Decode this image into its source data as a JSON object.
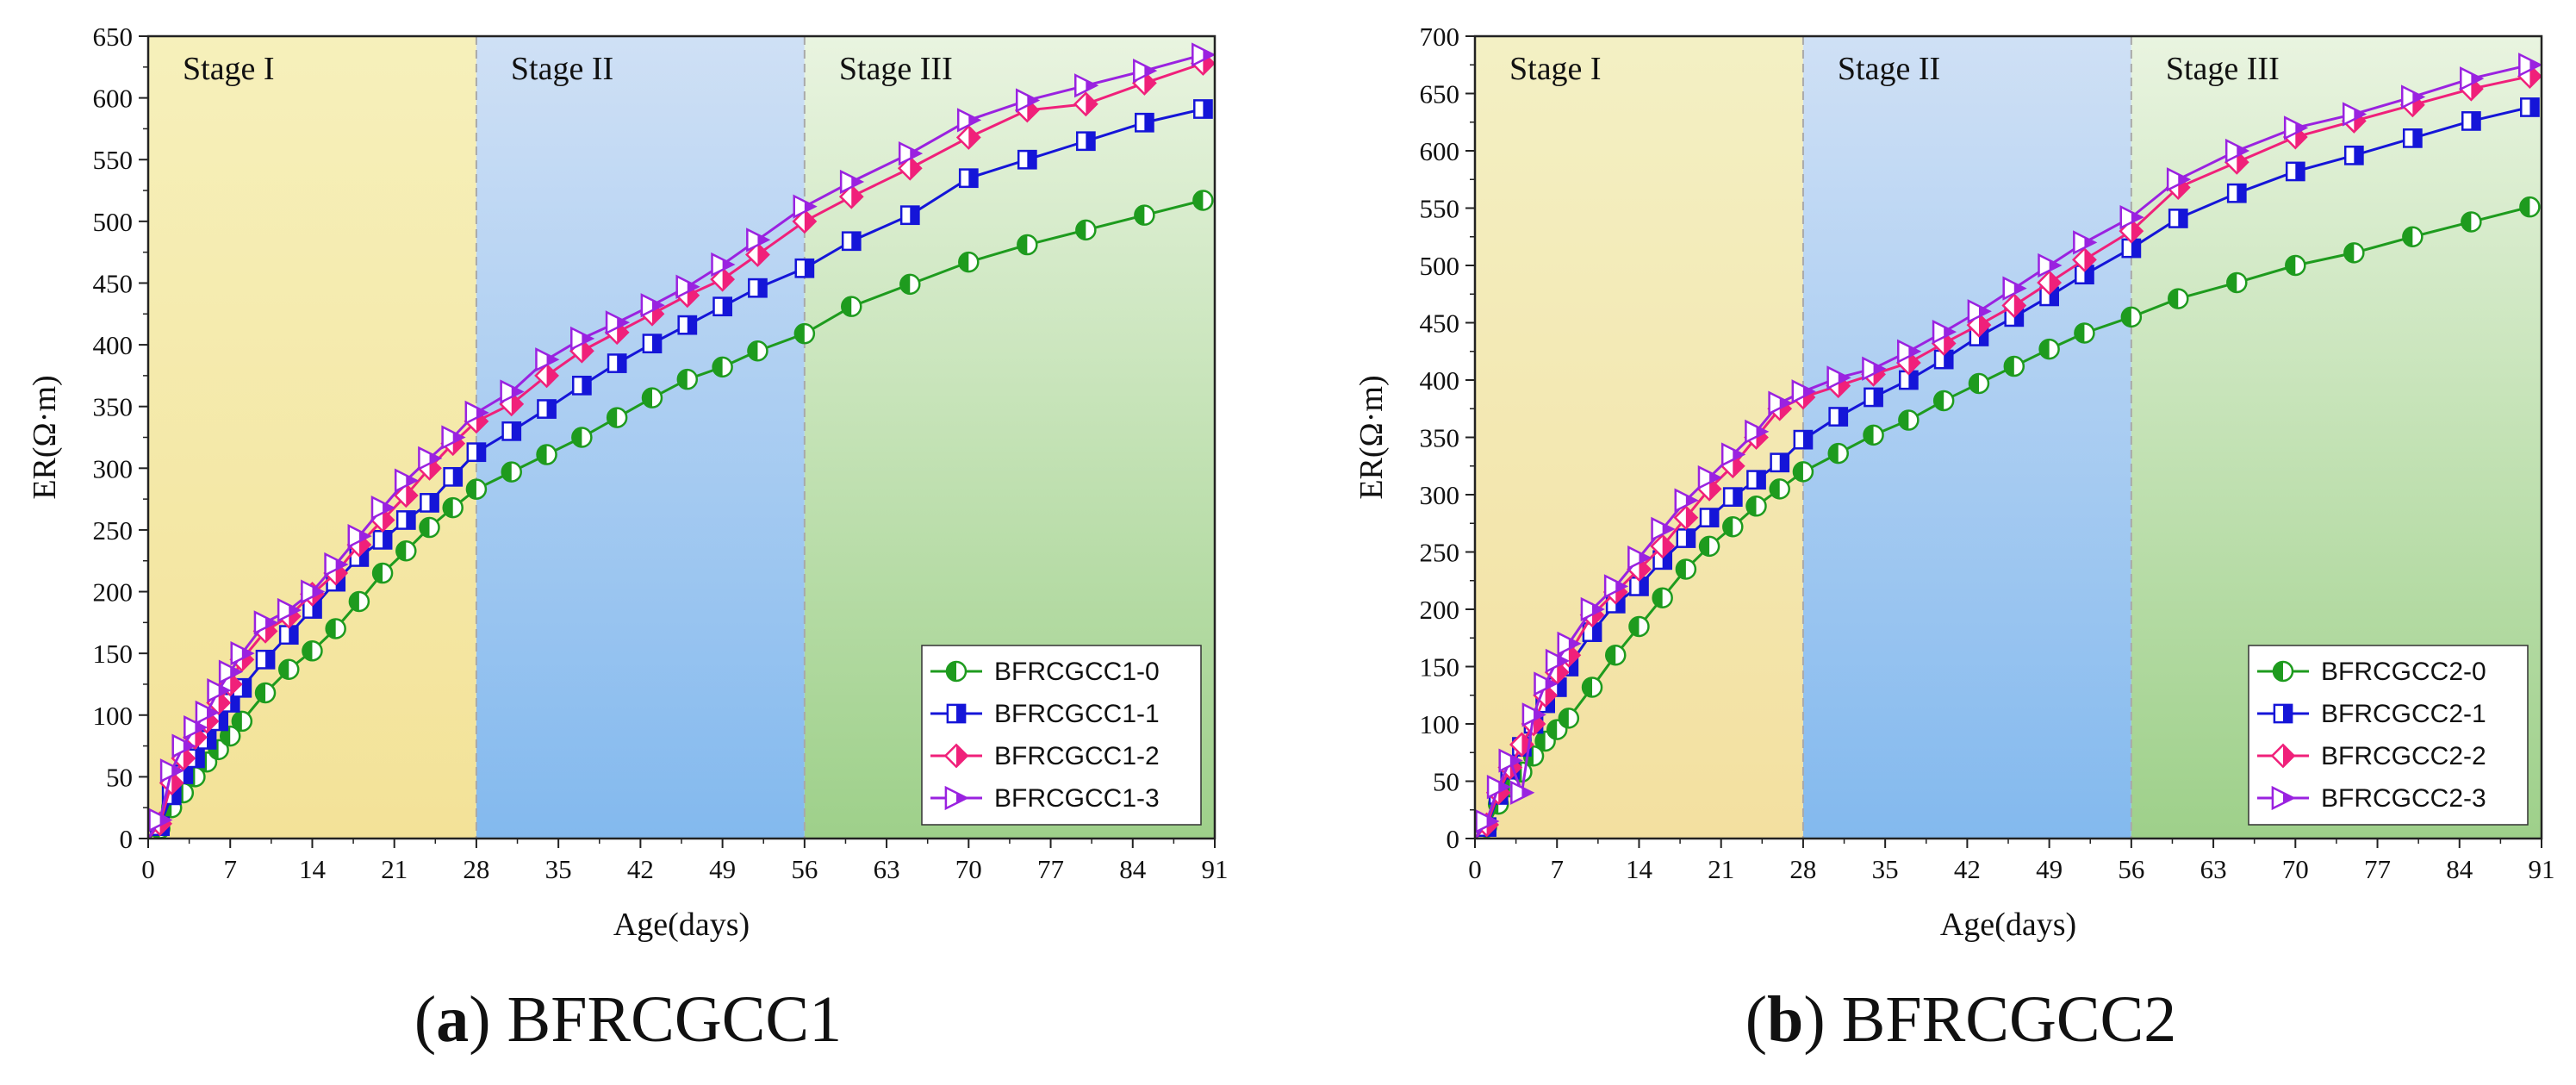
{
  "chart_data": [
    {
      "type": "line",
      "caption": {
        "letter": "a",
        "name": "BFRCGCC1"
      },
      "xlabel": "Age(days)",
      "ylabel": "ER(Ω·m)",
      "xlim": [
        0,
        91
      ],
      "ylim": [
        0,
        650
      ],
      "xticks": [
        0,
        7,
        14,
        21,
        28,
        35,
        42,
        49,
        56,
        63,
        70,
        77,
        84,
        91
      ],
      "yticks": [
        0,
        50,
        100,
        150,
        200,
        250,
        300,
        350,
        400,
        450,
        500,
        550,
        600,
        650
      ],
      "stages": [
        {
          "label": "Stage I",
          "start": 0,
          "end": 28,
          "top": "#f6f0bb",
          "bottom": "#f3e298"
        },
        {
          "label": "Stage II",
          "start": 28,
          "end": 56,
          "top": "#cfe0f5",
          "bottom": "#83b9ee"
        },
        {
          "label": "Stage III",
          "start": 56,
          "end": 91,
          "top": "#e9f4e0",
          "bottom": "#9ed08a"
        }
      ],
      "x": [
        1,
        2,
        3,
        4,
        5,
        6,
        7,
        8,
        10,
        12,
        14,
        16,
        18,
        20,
        22,
        24,
        26,
        28,
        31,
        34,
        37,
        40,
        43,
        46,
        49,
        52,
        56,
        60,
        65,
        70,
        75,
        80,
        85,
        90
      ],
      "series": [
        {
          "name": "BFRCGCC1-0",
          "color": "#1e9b1e",
          "marker": "circle",
          "values": [
            8,
            25,
            37,
            50,
            62,
            72,
            83,
            95,
            118,
            137,
            152,
            170,
            192,
            215,
            233,
            252,
            268,
            283,
            297,
            311,
            325,
            341,
            357,
            372,
            382,
            395,
            409,
            431,
            449,
            467,
            481,
            493,
            505,
            517
          ]
        },
        {
          "name": "BFRCGCC1-1",
          "color": "#1515d8",
          "marker": "square",
          "values": [
            10,
            35,
            52,
            65,
            80,
            95,
            110,
            122,
            145,
            165,
            186,
            208,
            228,
            242,
            258,
            272,
            293,
            313,
            330,
            348,
            367,
            385,
            401,
            416,
            431,
            446,
            462,
            484,
            505,
            535,
            550,
            565,
            580,
            591
          ]
        },
        {
          "name": "BFRCGCC1-2",
          "color": "#f0207a",
          "marker": "diamond",
          "values": [
            12,
            45,
            65,
            82,
            95,
            110,
            125,
            145,
            168,
            180,
            198,
            215,
            238,
            258,
            278,
            300,
            320,
            338,
            352,
            375,
            395,
            410,
            425,
            440,
            453,
            473,
            500,
            520,
            543,
            568,
            590,
            595,
            612,
            628
          ]
        },
        {
          "name": "BFRCGCC1-3",
          "color": "#9a22e0",
          "marker": "triangle-right",
          "values": [
            15,
            55,
            75,
            90,
            102,
            120,
            135,
            150,
            175,
            185,
            200,
            222,
            245,
            268,
            290,
            308,
            325,
            345,
            362,
            388,
            405,
            418,
            432,
            447,
            465,
            485,
            512,
            532,
            555,
            582,
            598,
            610,
            622,
            635
          ]
        }
      ],
      "legend": "bottom-right"
    },
    {
      "type": "line",
      "caption": {
        "letter": "b",
        "name": "BFRCGCC2"
      },
      "xlabel": "Age(days)",
      "ylabel": "ER(Ω·m)",
      "xlim": [
        0,
        91
      ],
      "ylim": [
        0,
        700
      ],
      "xticks": [
        0,
        7,
        14,
        21,
        28,
        35,
        42,
        49,
        56,
        63,
        70,
        77,
        84,
        91
      ],
      "yticks": [
        0,
        50,
        100,
        150,
        200,
        250,
        300,
        350,
        400,
        450,
        500,
        550,
        600,
        650,
        700
      ],
      "stages": [
        {
          "label": "Stage I",
          "start": 0,
          "end": 28,
          "top": "#f3f0c4",
          "bottom": "#f3e0a0"
        },
        {
          "label": "Stage II",
          "start": 28,
          "end": 56,
          "top": "#cfe0f5",
          "bottom": "#83b9ee"
        },
        {
          "label": "Stage III",
          "start": 56,
          "end": 91,
          "top": "#e9f4e0",
          "bottom": "#9ed08a"
        }
      ],
      "x": [
        1,
        2,
        3,
        4,
        5,
        6,
        7,
        8,
        10,
        12,
        14,
        16,
        18,
        20,
        22,
        24,
        26,
        28,
        31,
        34,
        37,
        40,
        43,
        46,
        49,
        52,
        56,
        60,
        65,
        70,
        75,
        80,
        85,
        90
      ],
      "series": [
        {
          "name": "BFRCGCC2-0",
          "color": "#1e9b1e",
          "marker": "circle",
          "values": [
            10,
            30,
            45,
            58,
            72,
            85,
            95,
            105,
            132,
            160,
            185,
            210,
            235,
            255,
            272,
            290,
            305,
            320,
            336,
            352,
            365,
            382,
            397,
            412,
            427,
            441,
            455,
            471,
            485,
            500,
            511,
            525,
            538,
            551
          ]
        },
        {
          "name": "BFRCGCC2-1",
          "color": "#1515d8",
          "marker": "square",
          "values": [
            10,
            38,
            60,
            80,
            100,
            118,
            132,
            150,
            180,
            205,
            220,
            243,
            262,
            280,
            298,
            313,
            328,
            348,
            368,
            385,
            400,
            418,
            438,
            455,
            473,
            492,
            515,
            541,
            563,
            582,
            596,
            611,
            626,
            638
          ]
        },
        {
          "name": "BFRCGCC2-2",
          "color": "#f0207a",
          "marker": "diamond",
          "values": [
            12,
            40,
            62,
            82,
            100,
            125,
            145,
            160,
            195,
            215,
            235,
            255,
            280,
            305,
            325,
            350,
            375,
            385,
            395,
            405,
            415,
            432,
            448,
            465,
            485,
            505,
            530,
            568,
            590,
            612,
            626,
            640,
            654,
            665
          ]
        },
        {
          "name": "BFRCGCC2-3",
          "color": "#9a22e0",
          "marker": "triangle-right",
          "values": [
            15,
            45,
            68,
            40,
            108,
            135,
            155,
            170,
            200,
            220,
            245,
            270,
            295,
            315,
            335,
            355,
            380,
            390,
            402,
            410,
            425,
            442,
            460,
            480,
            500,
            520,
            542,
            575,
            600,
            620,
            632,
            647,
            663,
            675
          ]
        }
      ],
      "legend": "bottom-right"
    }
  ]
}
